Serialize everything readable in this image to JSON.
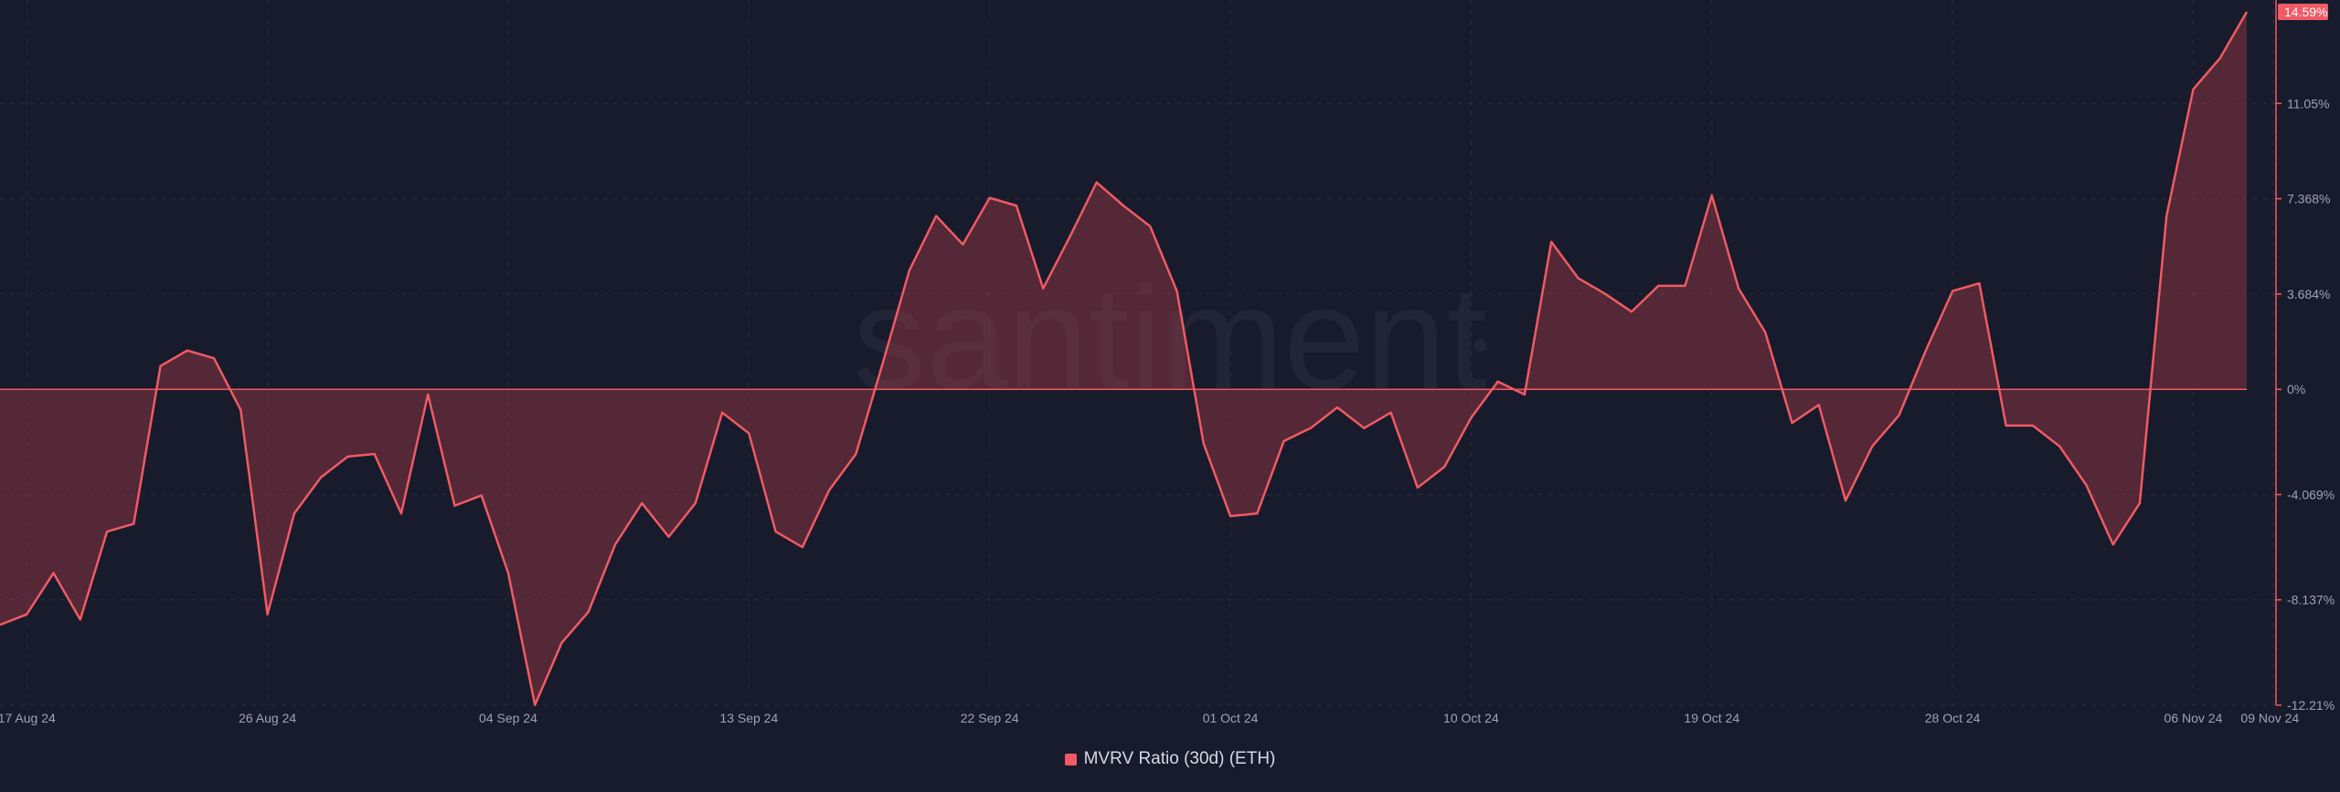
{
  "chart_data": {
    "type": "area",
    "watermark": "santiment",
    "legend": {
      "label": "MVRV Ratio (30d) (ETH)",
      "color": "#f05a64",
      "placement": "bottom-center"
    },
    "y_ticks": [
      {
        "value": 11.05,
        "label": "11.05%"
      },
      {
        "value": 7.368,
        "label": "7.368%"
      },
      {
        "value": 3.684,
        "label": "3.684%"
      },
      {
        "value": 0,
        "label": "0%"
      },
      {
        "value": -4.069,
        "label": "-4.069%"
      },
      {
        "value": -8.137,
        "label": "-8.137%"
      },
      {
        "value": -12.21,
        "label": "-12.21%"
      }
    ],
    "ylim": [
      -12.21,
      14.59
    ],
    "current_value_label": "14.59%",
    "x_ticks": [
      {
        "index": 1,
        "label": "17 Aug 24"
      },
      {
        "index": 10,
        "label": "26 Aug 24"
      },
      {
        "index": 19,
        "label": "04 Sep 24"
      },
      {
        "index": 28,
        "label": "13 Sep 24"
      },
      {
        "index": 37,
        "label": "22 Sep 24"
      },
      {
        "index": 46,
        "label": "01 Oct 24"
      },
      {
        "index": 55,
        "label": "10 Oct 24"
      },
      {
        "index": 64,
        "label": "19 Oct 24"
      },
      {
        "index": 73,
        "label": "28 Oct 24"
      },
      {
        "index": 82,
        "label": "06 Nov 24"
      },
      {
        "index": 85,
        "label": "09 Nov 24"
      }
    ],
    "series": [
      {
        "name": "MVRV Ratio (30d) (ETH)",
        "color": "#f05a64",
        "values": [
          -9.1,
          -8.7,
          -7.1,
          -8.9,
          -5.5,
          -5.2,
          0.9,
          1.5,
          1.2,
          -0.8,
          -8.7,
          -4.8,
          -3.4,
          -2.6,
          -2.5,
          -4.8,
          -0.2,
          -4.5,
          -4.1,
          -7.1,
          -12.2,
          -9.8,
          -8.6,
          -6.0,
          -4.4,
          -5.7,
          -4.4,
          -0.9,
          -1.7,
          -5.5,
          -6.1,
          -3.9,
          -2.5,
          1.0,
          4.6,
          6.7,
          5.6,
          7.4,
          7.1,
          3.9,
          5.9,
          8.0,
          7.1,
          6.3,
          3.8,
          -2.1,
          -4.9,
          -4.8,
          -2.0,
          -1.5,
          -0.7,
          -1.5,
          -0.9,
          -3.8,
          -3.0,
          -1.1,
          0.3,
          -0.2,
          5.7,
          4.3,
          3.7,
          3.0,
          4.0,
          4.0,
          7.5,
          3.9,
          2.2,
          -1.3,
          -0.6,
          -4.3,
          -2.2,
          -1.0,
          1.5,
          3.8,
          4.1,
          -1.4,
          -1.4,
          -2.2,
          -3.7,
          -6.0,
          -4.4,
          6.7,
          11.6,
          12.8,
          14.59
        ]
      }
    ]
  }
}
